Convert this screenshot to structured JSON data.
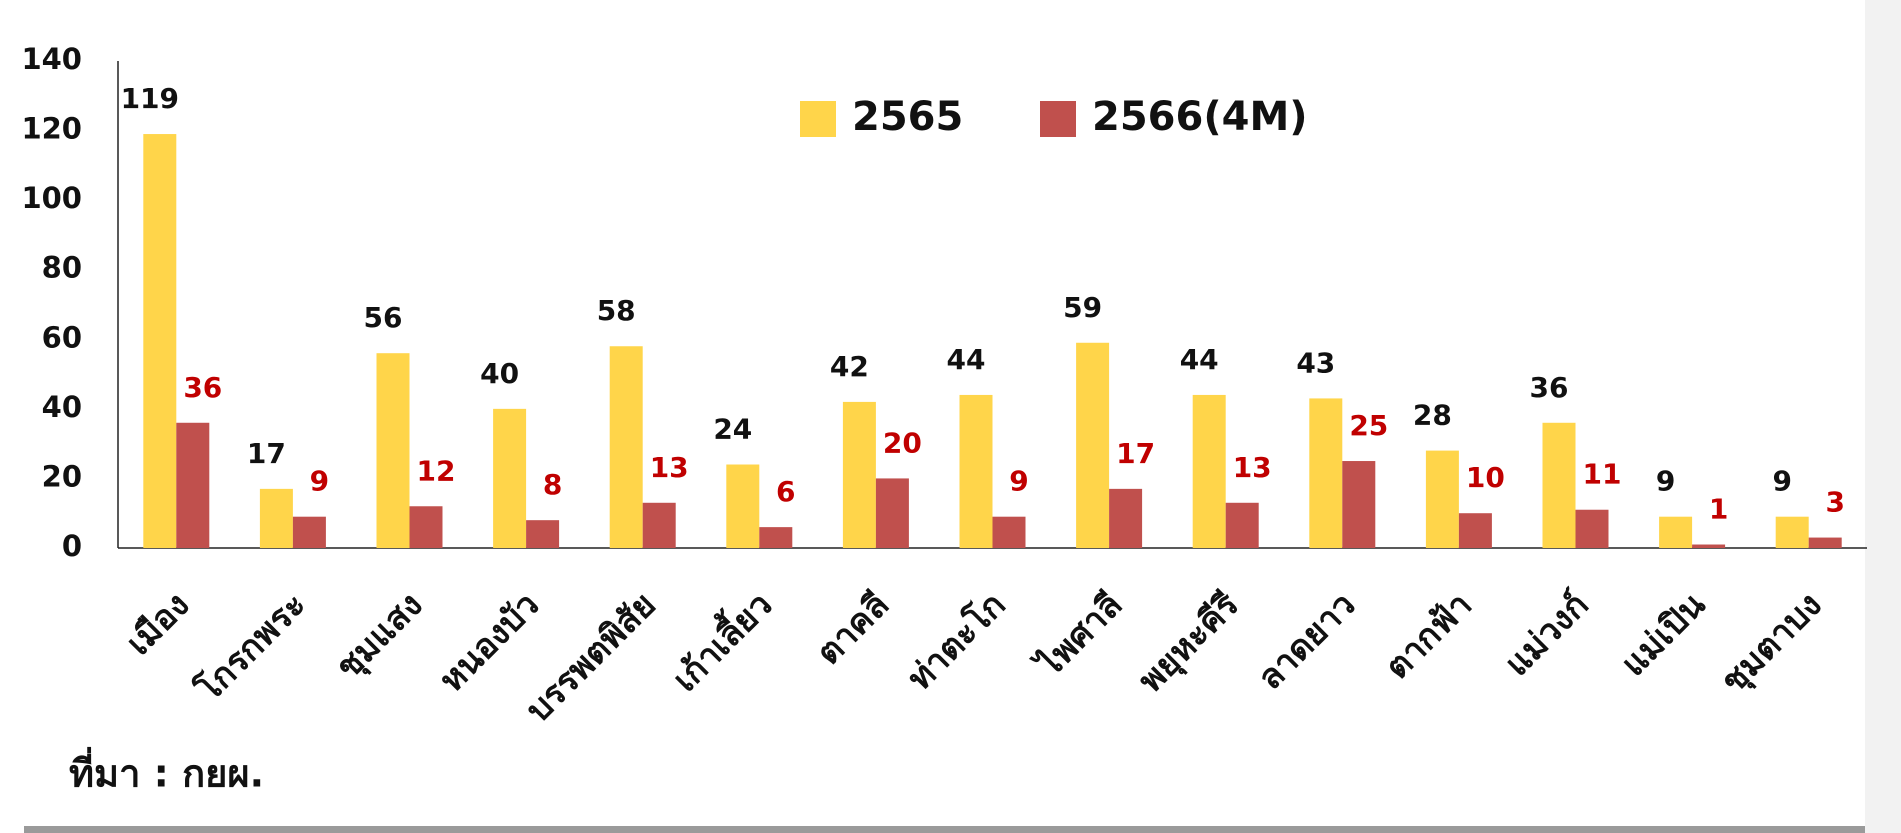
{
  "chart_data": {
    "type": "bar",
    "categories": [
      "เมือง",
      "โกรกพระ",
      "ชุมแสง",
      "หนองบัว",
      "บรรพตพิสัย",
      "เก้าเลี้ยว",
      "ตาคลี",
      "ท่าตะโก",
      "ไพศาลี",
      "พยุหะคีรี",
      "ลาดยาว",
      "ตากฟ้า",
      "แม่วงก์",
      "แม่เปิน",
      "ชุมตาบง"
    ],
    "series": [
      {
        "name": "2565",
        "color": "#ffd54a",
        "label_color": "#111111",
        "values": [
          119,
          17,
          56,
          40,
          58,
          24,
          42,
          44,
          59,
          44,
          43,
          28,
          36,
          9,
          9
        ]
      },
      {
        "name": "2566(4M)",
        "color": "#c0504d",
        "label_color": "#c00000",
        "values": [
          36,
          9,
          12,
          8,
          13,
          6,
          20,
          9,
          17,
          13,
          25,
          10,
          11,
          1,
          3
        ]
      }
    ],
    "ylim": [
      0,
      140
    ],
    "yticks": [
      0,
      20,
      40,
      60,
      80,
      100,
      120,
      140
    ],
    "grid": false,
    "legend": "top",
    "source": "ที่มา : กยผ."
  }
}
